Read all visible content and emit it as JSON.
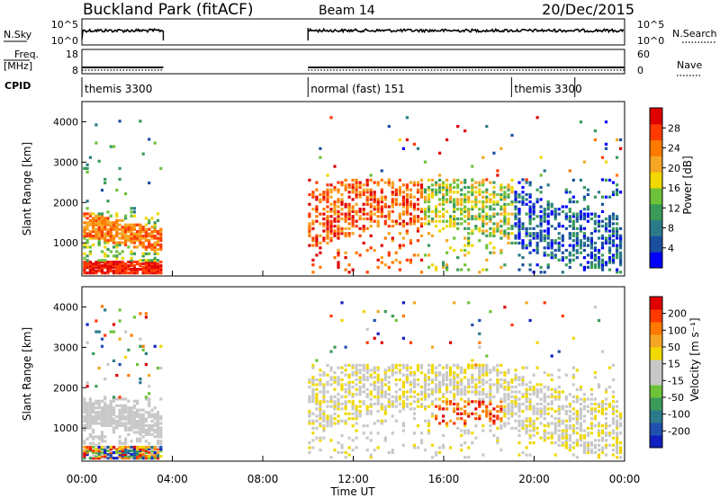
{
  "header": {
    "title": "Buckland Park (fitACF)",
    "beam": "Beam 14",
    "date": "20/Dec/2015"
  },
  "summary_panels": {
    "nsky": {
      "label": "N.Sky",
      "right_label": "N.Search",
      "ticks_left": [
        "10^5",
        "10^0"
      ],
      "ticks_right": [
        "10^5",
        "10^0"
      ]
    },
    "freq": {
      "label_line1": "Freq.",
      "label_line2": "[MHz]",
      "right_label": "Nave",
      "ticks_left": [
        "18",
        "8"
      ],
      "ticks_right": [
        "60",
        "0"
      ]
    },
    "cpid": {
      "label": "CPID",
      "segments": [
        {
          "text": "themis 3300",
          "start_hour": 0.0,
          "end_hour": 3.6
        },
        {
          "text": "normal (fast) 151",
          "start_hour": 10.0,
          "end_hour": 19.0
        },
        {
          "text": "themis 3300",
          "start_hour": 19.0,
          "end_hour": 21.8
        }
      ]
    }
  },
  "chart_data": [
    {
      "type": "heatmap",
      "name": "power",
      "ylabel": "Slant Range [km]",
      "xlim": [
        0,
        24
      ],
      "ylim": [
        180,
        4500
      ],
      "yticks": [
        1000,
        2000,
        3000,
        4000
      ],
      "colorbar": {
        "title": "Power [dB]",
        "ticks": [
          "28",
          "24",
          "20",
          "16",
          "12",
          "8",
          "4"
        ],
        "colors": [
          "#0000ff",
          "#1a4fa0",
          "#2a7a8a",
          "#3a9a5a",
          "#6ec23a",
          "#f0d800",
          "#f5a623",
          "#ff7a00",
          "#ff3a00",
          "#e00000"
        ]
      },
      "data_coverage_hours": [
        [
          0.0,
          3.6
        ],
        [
          10.0,
          24.0
        ]
      ]
    },
    {
      "type": "heatmap",
      "name": "velocity",
      "ylabel": "Slant Range [km]",
      "xlabel": "Time UT",
      "xlim": [
        0,
        24
      ],
      "ylim": [
        180,
        4500
      ],
      "yticks": [
        1000,
        2000,
        3000,
        4000
      ],
      "xticks": [
        "00:00",
        "04:00",
        "08:00",
        "12:00",
        "16:00",
        "20:00",
        "00:00"
      ],
      "colorbar": {
        "title": "Velocity [m s⁻¹]",
        "ticks": [
          "200",
          "100",
          "50",
          "15",
          "-15",
          "-50",
          "-100",
          "-200"
        ],
        "colors": [
          "#1020c0",
          "#2050b0",
          "#2a7a8a",
          "#3a9a5a",
          "#6ec23a",
          "#c8c8c8",
          "#c8c8c8",
          "#f0d800",
          "#f5a623",
          "#ff7a00",
          "#ff3a00",
          "#e00000"
        ]
      },
      "data_coverage_hours": [
        [
          0.0,
          3.6
        ],
        [
          10.0,
          24.0
        ]
      ]
    }
  ]
}
